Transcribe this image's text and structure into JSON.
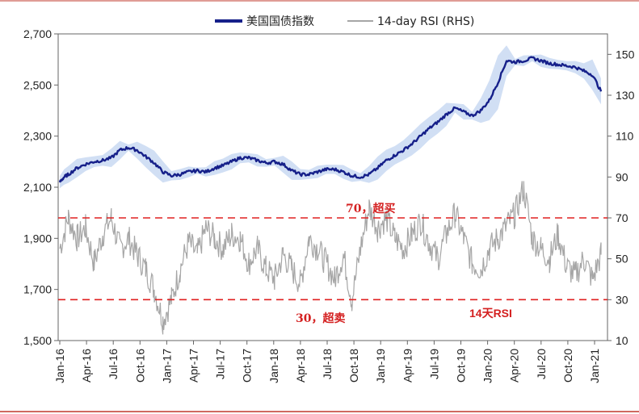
{
  "chart_data": {
    "type": "line",
    "colors": {
      "index": "#16208a",
      "band": "#c9d9f2",
      "rsi": "#a6a6a6",
      "threshold": "#e02020",
      "frame_red": "#c0392b"
    },
    "legend": {
      "position": "top-center",
      "items": [
        "美国国债指数",
        "14-day RSI (RHS)"
      ]
    },
    "x_ticks": [
      "Jan-16",
      "Apr-16",
      "Jul-16",
      "Oct-16",
      "Jan-17",
      "Apr-17",
      "Jul-17",
      "Oct-17",
      "Jan-18",
      "Apr-18",
      "Jul-18",
      "Oct-18",
      "Jan-19",
      "Apr-19",
      "Jul-19",
      "Oct-19",
      "Jan-20",
      "Apr-20",
      "Jul-20",
      "Oct-20",
      "Jan-21"
    ],
    "y_left": {
      "ticks": [
        "1,500",
        "1,700",
        "1,900",
        "2,100",
        "2,300",
        "2,500",
        "2,700"
      ],
      "range": [
        1500,
        2700
      ]
    },
    "y_right": {
      "ticks": [
        "10",
        "30",
        "50",
        "70",
        "90",
        "110",
        "130",
        "150"
      ],
      "range": [
        10,
        160
      ]
    },
    "thresholds": [
      {
        "value": 70,
        "label": "70，超买"
      },
      {
        "value": 30,
        "label": "30，超卖"
      }
    ],
    "rsi_label": "14天RSI",
    "grid": false,
    "series": [
      {
        "name": "美国国债指数",
        "axis": "left",
        "x": [
          0,
          0.5,
          1,
          2,
          3,
          4,
          5,
          6,
          7,
          8,
          9,
          10,
          11,
          12,
          13,
          14,
          15,
          16,
          17,
          18,
          19,
          20,
          21,
          22,
          23,
          24,
          25,
          26,
          27,
          28,
          29,
          30,
          31,
          32,
          33,
          34,
          35,
          36,
          37,
          38,
          39,
          40,
          41,
          42,
          43,
          44,
          45,
          46,
          47,
          48,
          49,
          50,
          51,
          52,
          53,
          54,
          55,
          56,
          57,
          58,
          59,
          60,
          61,
          62,
          63
        ],
        "values": [
          2120,
          2140,
          2150,
          2175,
          2190,
          2200,
          2205,
          2215,
          2245,
          2255,
          2245,
          2220,
          2195,
          2160,
          2145,
          2150,
          2160,
          2165,
          2160,
          2175,
          2185,
          2200,
          2215,
          2215,
          2205,
          2195,
          2200,
          2190,
          2165,
          2150,
          2150,
          2160,
          2170,
          2170,
          2160,
          2145,
          2140,
          2150,
          2175,
          2205,
          2225,
          2245,
          2270,
          2300,
          2330,
          2355,
          2385,
          2410,
          2395,
          2380,
          2400,
          2440,
          2510,
          2595,
          2590,
          2595,
          2605,
          2595,
          2585,
          2580,
          2575,
          2570,
          2555,
          2540,
          2475
        ]
      },
      {
        "name": "14-day RSI (RHS)",
        "axis": "right",
        "x": [
          0,
          1,
          2,
          3,
          4,
          5,
          6,
          7,
          8,
          9,
          10,
          11,
          12,
          13,
          14,
          15,
          16,
          17,
          18,
          19,
          20,
          21,
          22,
          23,
          24,
          25,
          26,
          27,
          28,
          29,
          30,
          31,
          32,
          33,
          34,
          35,
          36,
          37,
          38,
          39,
          40,
          41,
          42,
          43,
          44,
          45,
          46,
          47,
          48,
          49,
          50,
          51,
          52,
          53,
          54,
          55,
          56,
          57,
          58,
          59,
          60,
          61,
          62,
          63
        ],
        "values": [
          55,
          70,
          60,
          65,
          48,
          62,
          70,
          55,
          60,
          52,
          45,
          35,
          20,
          30,
          45,
          58,
          52,
          65,
          60,
          55,
          62,
          60,
          48,
          55,
          45,
          40,
          52,
          45,
          38,
          60,
          55,
          48,
          40,
          52,
          30,
          55,
          75,
          65,
          70,
          60,
          55,
          62,
          68,
          58,
          50,
          62,
          72,
          60,
          48,
          45,
          55,
          60,
          66,
          72,
          85,
          60,
          55,
          50,
          62,
          46,
          42,
          50,
          40,
          52
        ]
      }
    ]
  }
}
